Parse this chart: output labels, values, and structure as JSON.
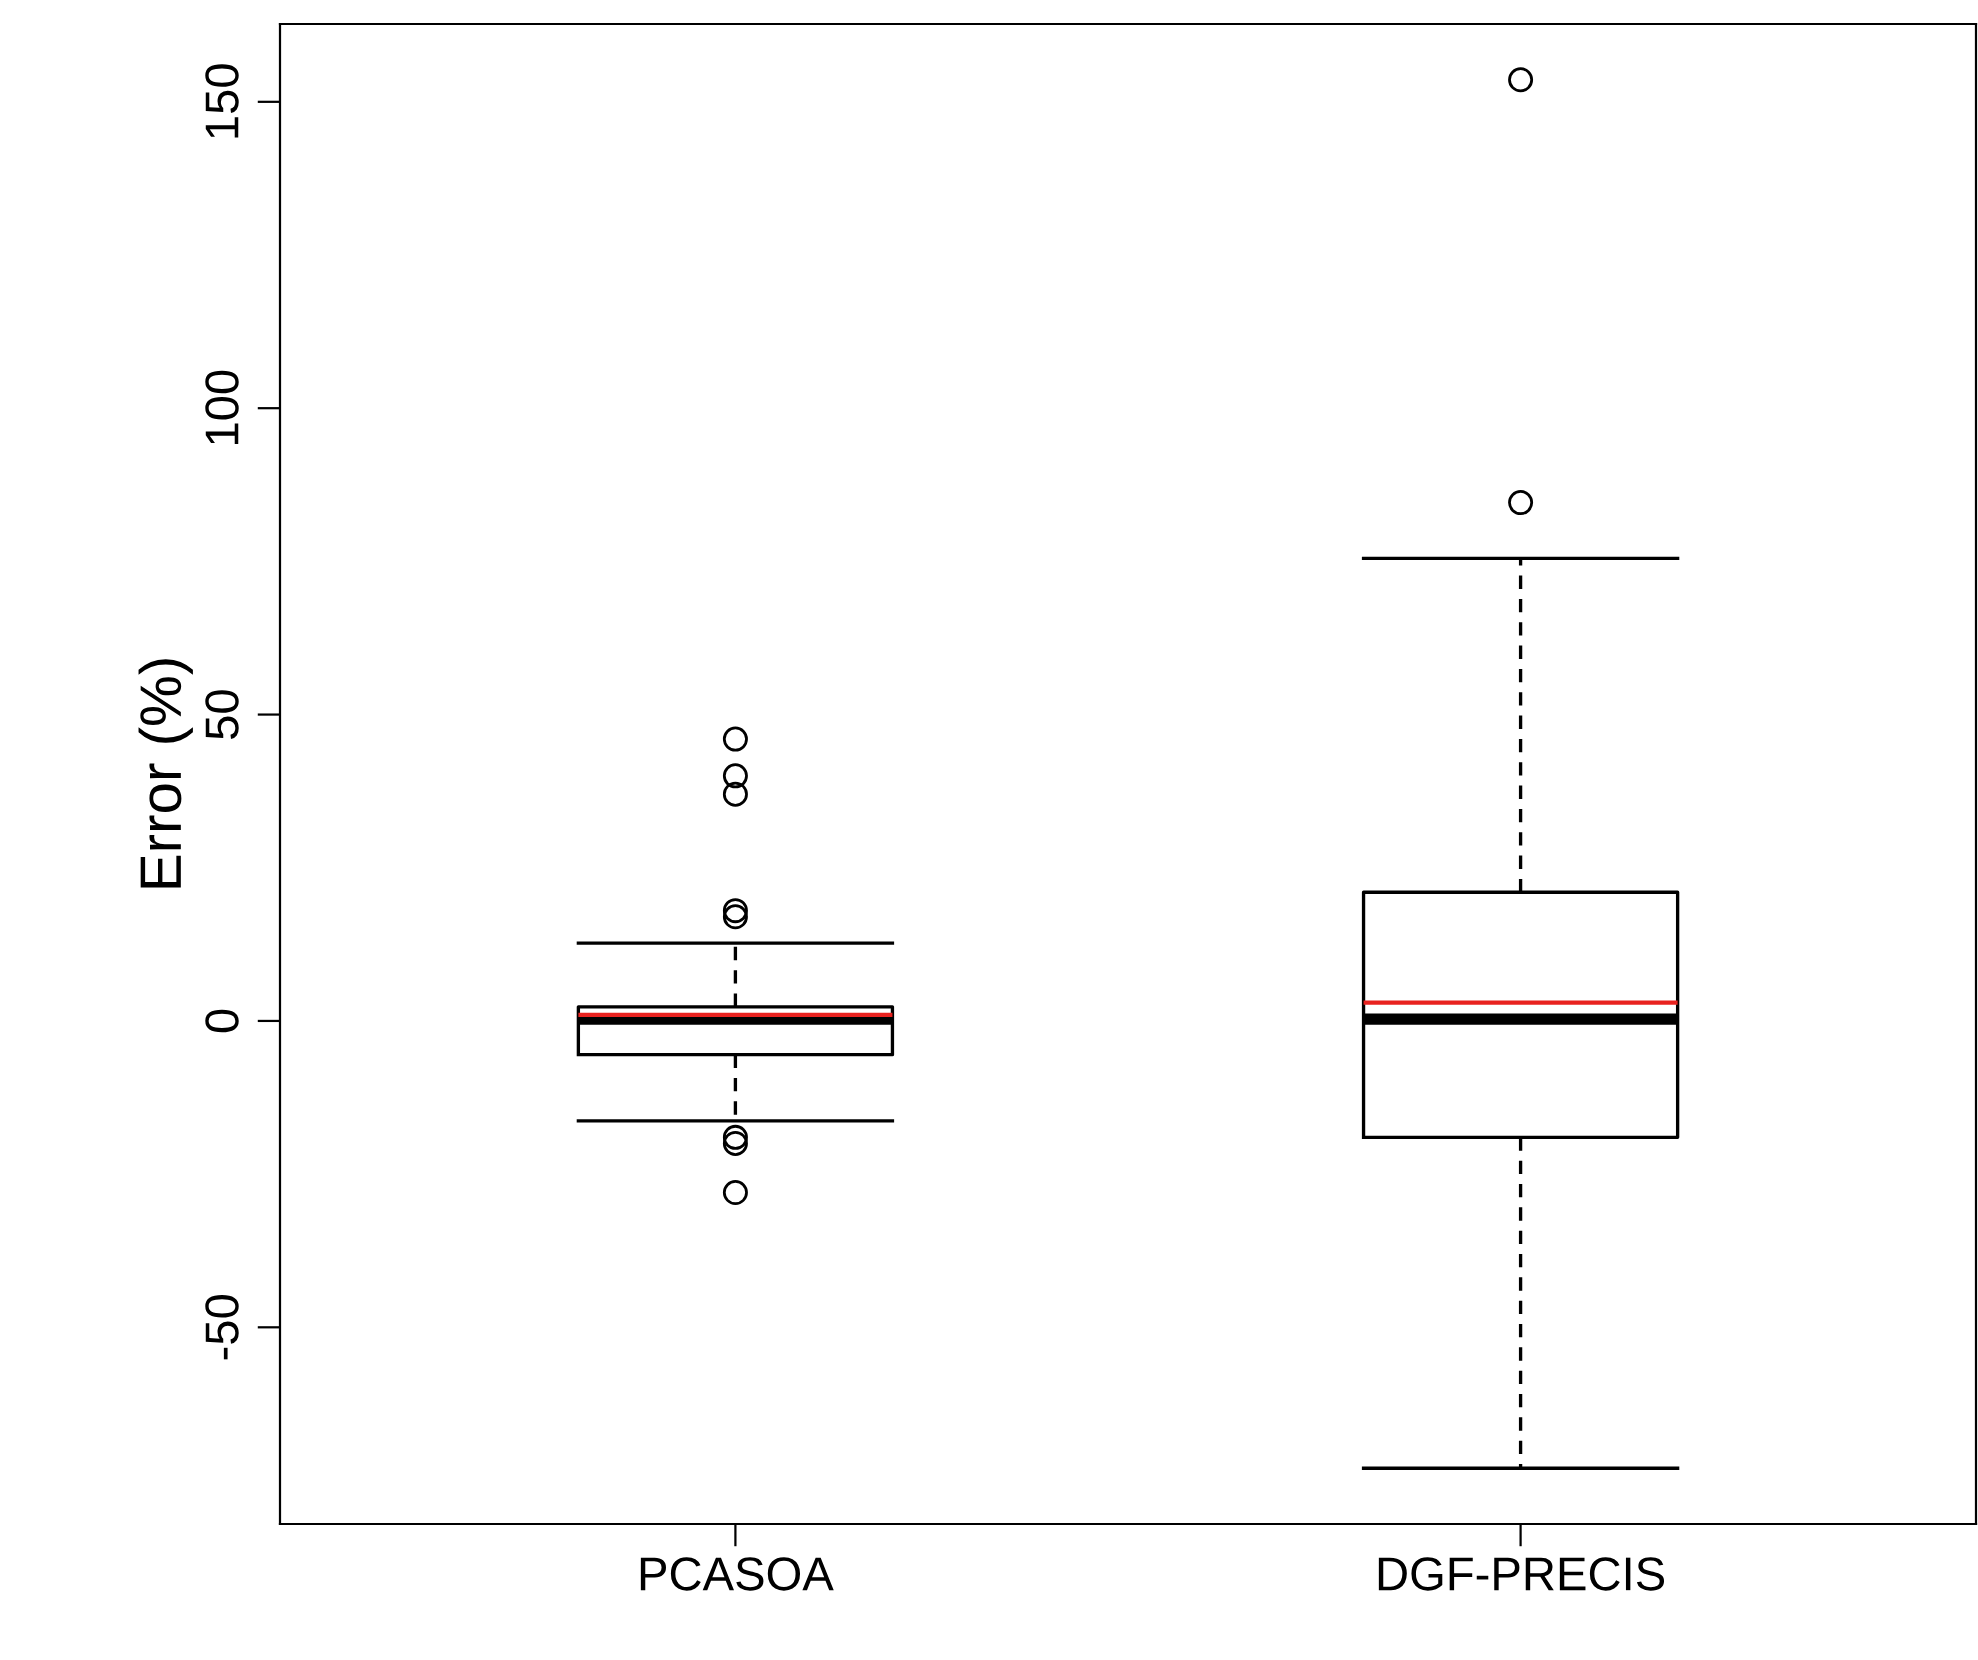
{
  "chart_data": {
    "type": "box",
    "ylabel": "Error (%)",
    "categories": [
      "PCASOA",
      "DGF-PRECIS"
    ],
    "boxes": [
      {
        "low": -16.3,
        "q1": -5.5,
        "median": 0.3,
        "q3": 2.3,
        "high": 12.7,
        "mean": 1,
        "outliers": [
          46,
          40,
          37,
          18,
          17,
          -19,
          -20,
          -28
        ]
      },
      {
        "low": -73,
        "q1": -19,
        "median": 0.3,
        "q3": 21,
        "high": 75.5,
        "mean": 3,
        "outliers": [
          153.6,
          84.6
        ]
      }
    ],
    "ylim": [
      -82.1,
      162.7
    ],
    "yticks": [
      -50,
      0,
      50,
      100,
      150
    ],
    "grid": false,
    "legend": false
  }
}
